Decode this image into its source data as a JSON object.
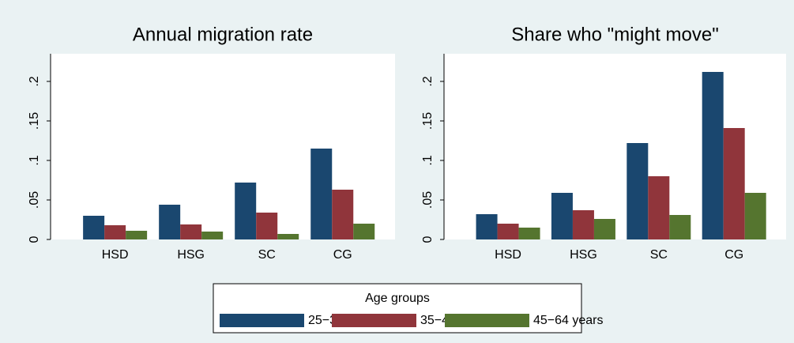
{
  "legend": {
    "title": "Age groups"
  },
  "chart_data": [
    {
      "type": "bar",
      "title": "Annual migration rate",
      "categories": [
        "HSD",
        "HSG",
        "SC",
        "CG"
      ],
      "series": [
        {
          "name": "25−34",
          "color": "#1a476f",
          "values": [
            0.03,
            0.044,
            0.072,
            0.115
          ]
        },
        {
          "name": "35−44",
          "color": "#90353b",
          "values": [
            0.018,
            0.019,
            0.034,
            0.063
          ]
        },
        {
          "name": "45−64 years",
          "color": "#55752f",
          "values": [
            0.011,
            0.01,
            0.007,
            0.02
          ]
        }
      ],
      "ylim": [
        0,
        0.235
      ],
      "yticks": [
        0,
        {
          "value": 0.05,
          "label": ".05"
        },
        {
          "value": 0.1,
          "label": ".1"
        },
        {
          "value": 0.15,
          "label": ".15"
        },
        {
          "value": 0.2,
          "label": ".2"
        }
      ]
    },
    {
      "type": "bar",
      "title": "Share who \"might move\"",
      "categories": [
        "HSD",
        "HSG",
        "SC",
        "CG"
      ],
      "series": [
        {
          "color": "#1a476f",
          "values": [
            0.032,
            0.059,
            0.122,
            0.212
          ]
        },
        {
          "color": "#90353b",
          "values": [
            0.02,
            0.037,
            0.08,
            0.141
          ]
        },
        {
          "color": "#55752f",
          "values": [
            0.015,
            0.026,
            0.031,
            0.059
          ]
        }
      ],
      "ylim": [
        0,
        0.235
      ],
      "yticks": [
        0,
        {
          "value": 0.05,
          "label": ".05"
        },
        {
          "value": 0.1,
          "label": ".1"
        },
        {
          "value": 0.15,
          "label": ".15"
        },
        {
          "value": 0.2,
          "label": ".2"
        }
      ]
    }
  ]
}
